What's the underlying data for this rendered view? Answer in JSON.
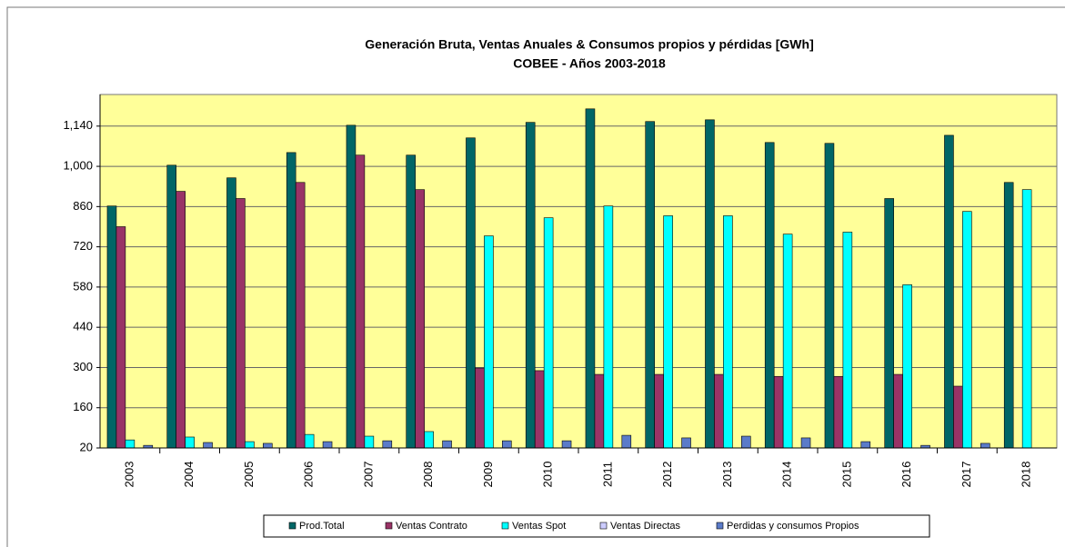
{
  "chart_data": {
    "type": "bar",
    "title": "Generación Bruta, Ventas Anuales & Consumos  propios y pérdidas [GWh]",
    "subtitle": "COBEE - Años 2003-2018",
    "categories": [
      "2003",
      "2004",
      "2005",
      "2006",
      "2007",
      "2008",
      "2009",
      "2010",
      "2011",
      "2012",
      "2013",
      "2014",
      "2015",
      "2016",
      "2017",
      "2018"
    ],
    "series": [
      {
        "name": "Prod.Total",
        "color": "#006666",
        "values": [
          862,
          1004,
          960,
          1048,
          1143,
          1039,
          1099,
          1153,
          1200,
          1156,
          1162,
          1083,
          1080,
          888,
          1108,
          944
        ]
      },
      {
        "name": "Ventas Contrato",
        "color": "#993366",
        "values": [
          790,
          913,
          888,
          944,
          1039,
          919,
          298,
          289,
          276,
          276,
          276,
          269,
          269,
          276,
          235,
          null
        ]
      },
      {
        "name": "Ventas Spot",
        "color": "#00ffff",
        "values": [
          48,
          58,
          42,
          67,
          61,
          77,
          758,
          821,
          862,
          828,
          828,
          764,
          771,
          588,
          843,
          919
        ]
      },
      {
        "name": "Ventas Directas",
        "color": "#ccccff",
        "values": [
          null,
          null,
          null,
          null,
          null,
          null,
          null,
          null,
          null,
          null,
          null,
          null,
          null,
          null,
          null,
          null
        ]
      },
      {
        "name": "Perdidas y consumos Propios",
        "color": "#5b7bc9",
        "values": [
          29,
          39,
          36,
          42,
          45,
          45,
          45,
          45,
          64,
          55,
          61,
          55,
          42,
          29,
          36,
          null
        ]
      }
    ],
    "ylim": [
      20,
      1250
    ],
    "yticks": [
      20,
      160,
      300,
      440,
      580,
      720,
      860,
      {
        "value": 1000,
        "label": "1,000"
      },
      {
        "value": 1140,
        "label": "1,140"
      }
    ],
    "grid": true
  }
}
